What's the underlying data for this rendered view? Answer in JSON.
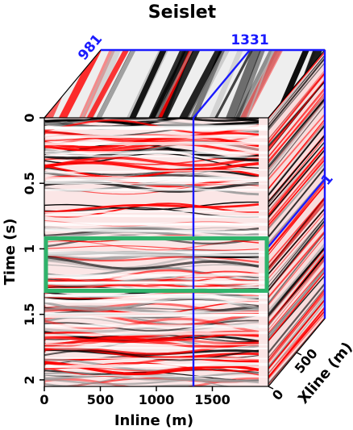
{
  "chart_data": {
    "type": "heatmap",
    "title": "Seislet",
    "xlabel": "Inline (m)",
    "ylabel": "Time (s)",
    "zlabel": "Xline (m)",
    "x_ticks": [
      0,
      500,
      1000,
      1500
    ],
    "y_ticks": [
      0,
      0.5,
      1,
      1.5,
      2
    ],
    "z_ticks": [
      0,
      500
    ],
    "xlim": [
      0,
      2000
    ],
    "ylim": [
      0,
      2.05
    ],
    "zlim": [
      0,
      1000
    ],
    "slice_positions": {
      "inline": "1331",
      "xline": "981",
      "time": "1"
    },
    "highlight_box": {
      "x": [
        0,
        2000
      ],
      "time": [
        0.92,
        1.32
      ],
      "color": "#2fb36b"
    },
    "colormap": [
      "#000000",
      "#ffffff",
      "#ff0000"
    ],
    "slice_color": "#1a1aff"
  }
}
